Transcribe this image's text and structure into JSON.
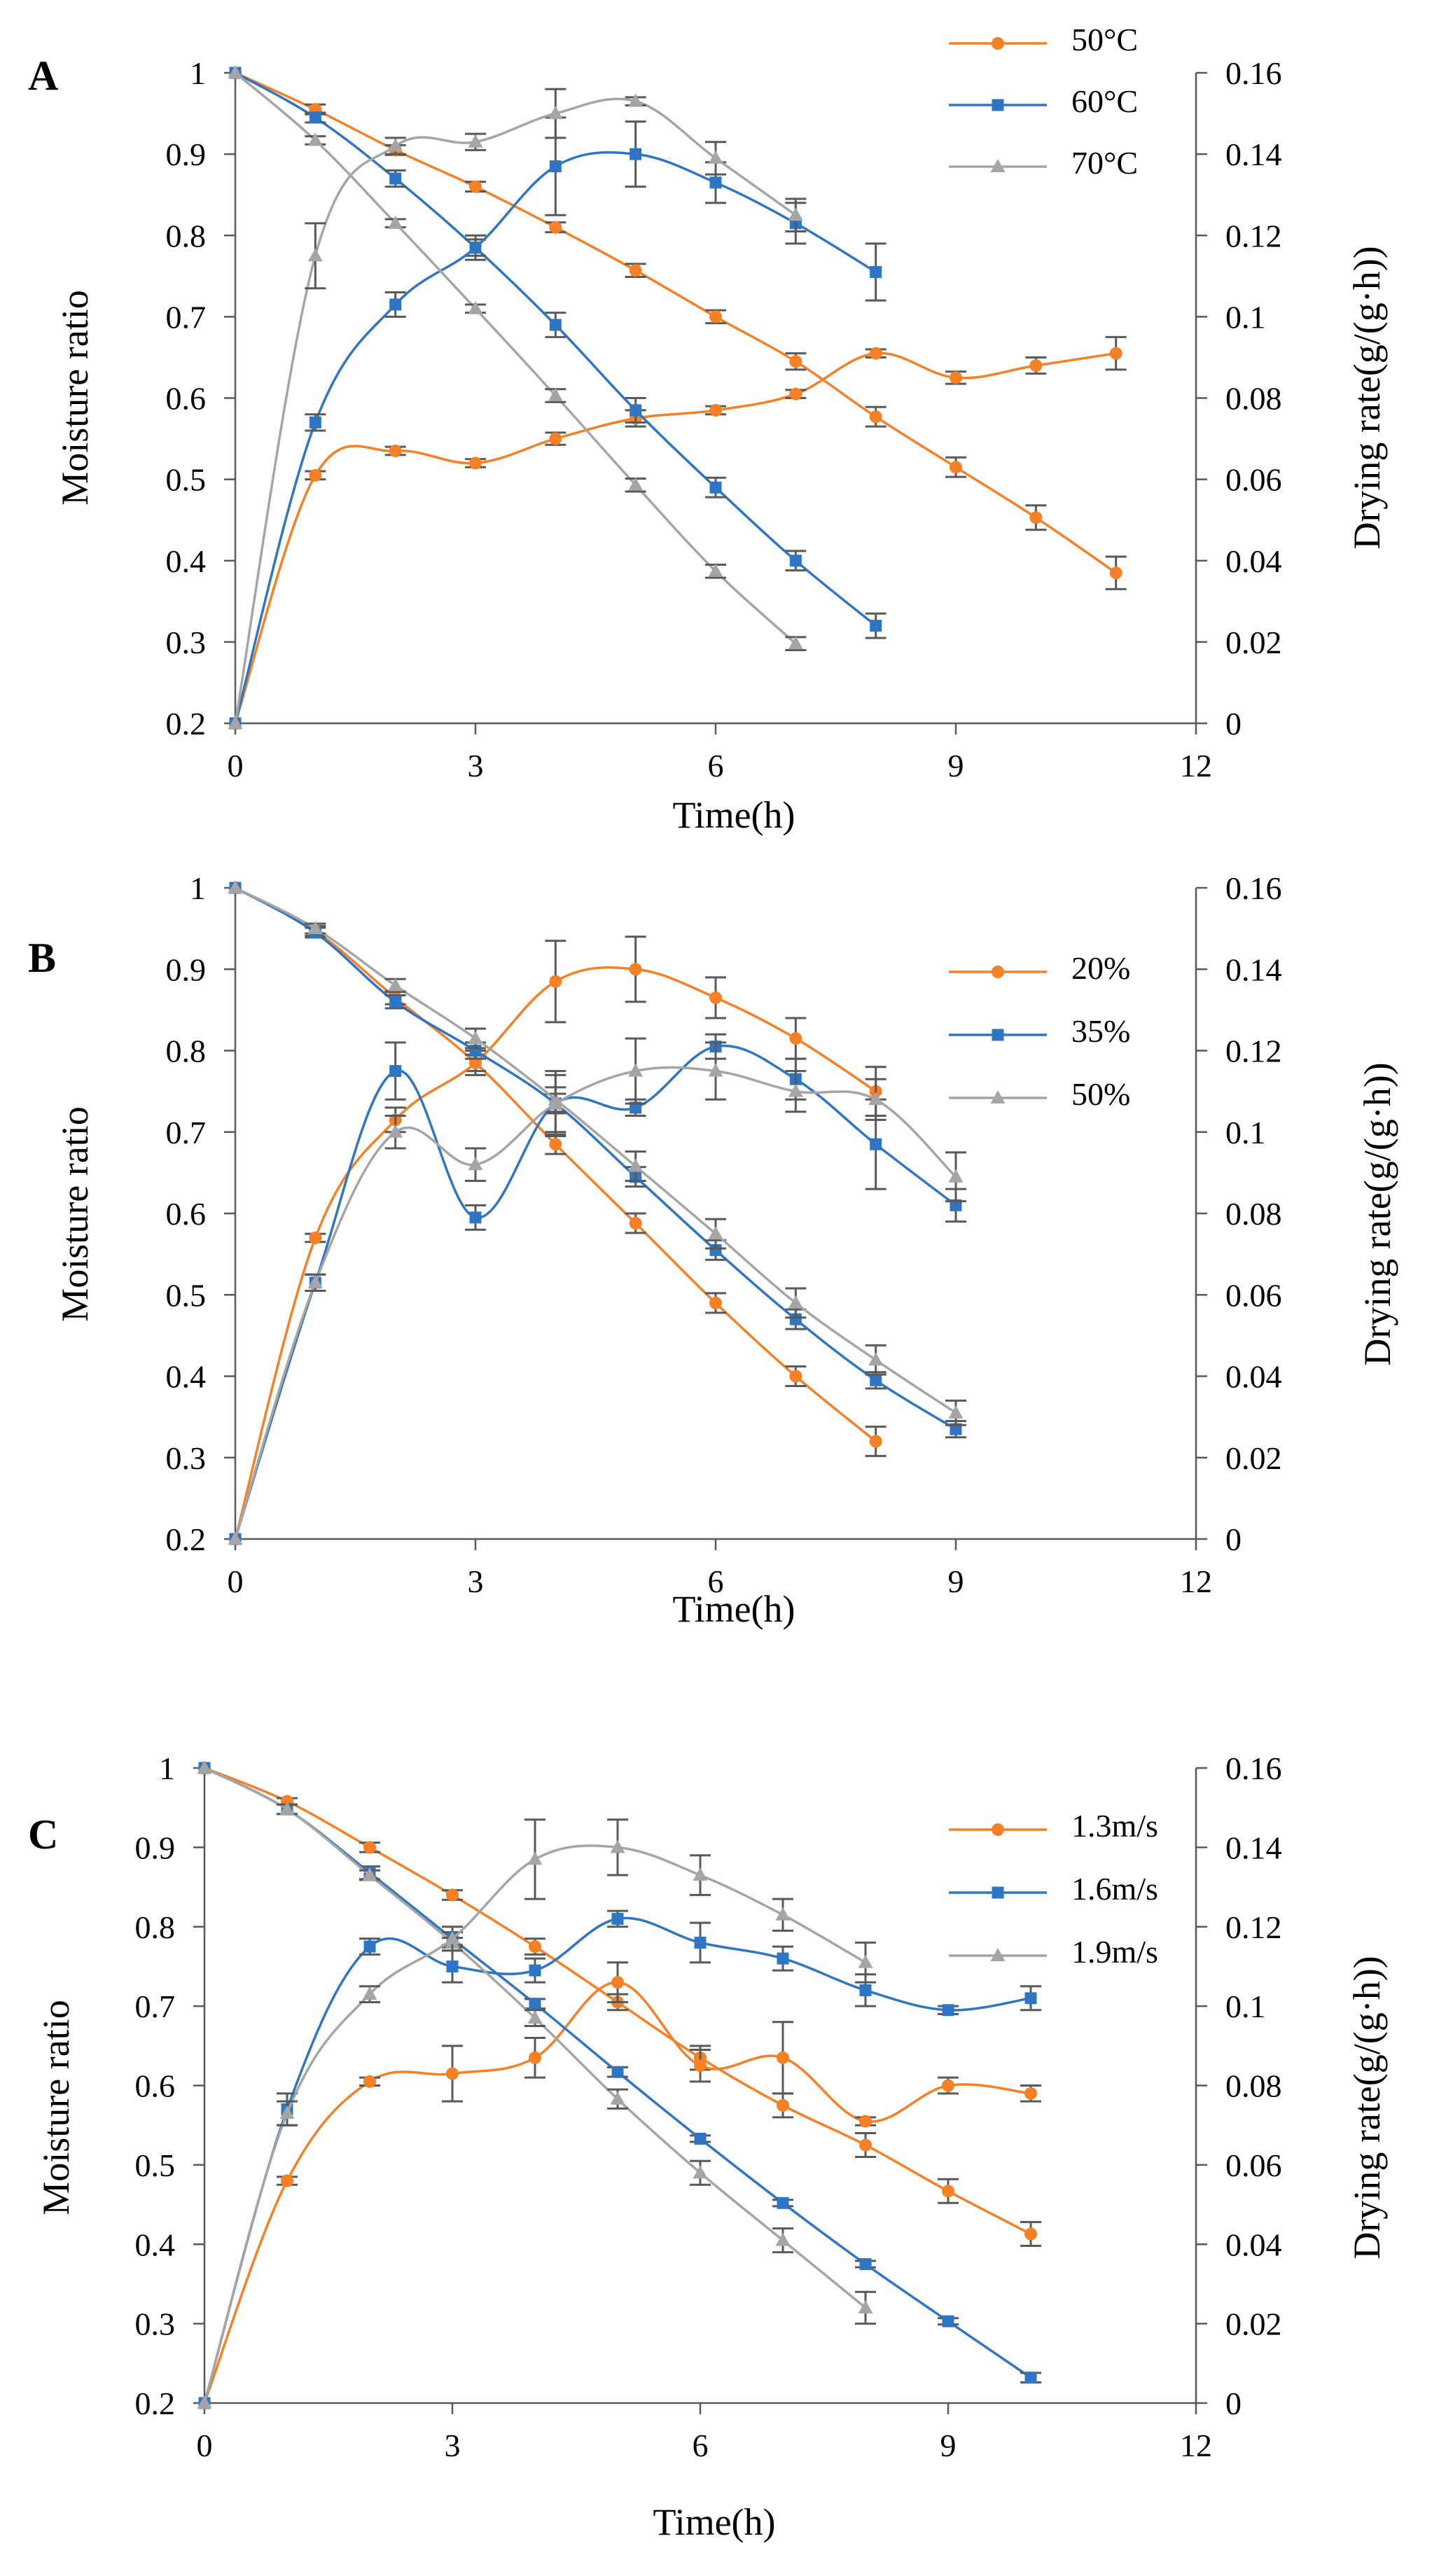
{
  "chart_data": [
    {
      "type": "line",
      "panel_label": "A",
      "xlabel": "Time(h)",
      "ylabel": "Moisture ratio",
      "y2label": "Drying rate(g/(g·h))",
      "xlim": [
        0,
        12
      ],
      "xticks": [
        "0",
        "3",
        "6",
        "9",
        "12"
      ],
      "ylim": [
        0.2,
        1
      ],
      "yticks": [
        "0.2",
        "0.3",
        "0.4",
        "0.5",
        "0.6",
        "0.7",
        "0.8",
        "0.9",
        "1"
      ],
      "y2lim": [
        0,
        0.16
      ],
      "y2ticks": [
        "0",
        "0.02",
        "0.04",
        "0.06",
        "0.08",
        "0.1",
        "0.12",
        "0.14",
        "0.16"
      ],
      "legend_position": "top-right",
      "series": [
        {
          "name": "50°C",
          "color": "#f58025",
          "marker": "circle",
          "moisture_ratio": {
            "x": [
              0,
              1,
              2,
              3,
              4,
              5,
              6,
              7,
              8,
              9,
              10,
              11
            ],
            "y": [
              1,
              0.955,
              0.905,
              0.86,
              0.81,
              0.757,
              0.7,
              0.645,
              0.577,
              0.515,
              0.453,
              0.385
            ],
            "err": [
              0,
              0.006,
              0.006,
              0.006,
              0.006,
              0.008,
              0.008,
              0.01,
              0.012,
              0.012,
              0.015,
              0.02
            ]
          },
          "drying_rate": {
            "x": [
              0,
              1,
              2,
              3,
              4,
              5,
              6,
              7,
              8,
              9,
              10,
              11
            ],
            "y": [
              0,
              0.061,
              0.067,
              0.064,
              0.07,
              0.075,
              0.077,
              0.081,
              0.091,
              0.085,
              0.088,
              0.091
            ],
            "err": [
              0,
              0.001,
              0.001,
              0.001,
              0.0015,
              0.002,
              0.001,
              0.001,
              0.001,
              0.0015,
              0.002,
              0.004
            ]
          }
        },
        {
          "name": "60°C",
          "color": "#2e75c4",
          "marker": "square",
          "moisture_ratio": {
            "x": [
              0,
              1,
              2,
              3,
              4,
              5,
              6,
              7,
              8
            ],
            "y": [
              1,
              0.945,
              0.87,
              0.785,
              0.69,
              0.585,
              0.49,
              0.4,
              0.32
            ],
            "err": [
              0,
              0.006,
              0.01,
              0.01,
              0.015,
              0.015,
              0.012,
              0.012,
              0.015
            ]
          },
          "drying_rate": {
            "x": [
              0,
              1,
              2,
              3,
              4,
              5,
              6,
              7,
              8
            ],
            "y": [
              0,
              0.074,
              0.103,
              0.117,
              0.137,
              0.14,
              0.133,
              0.123,
              0.111
            ],
            "err": [
              0,
              0.002,
              0.003,
              0.003,
              0.012,
              0.008,
              0.005,
              0.005,
              0.007
            ]
          }
        },
        {
          "name": "70°C",
          "color": "#a5a5a5",
          "marker": "triangle",
          "moisture_ratio": {
            "x": [
              0,
              1,
              2,
              3,
              4,
              5,
              6,
              7
            ],
            "y": [
              1,
              0.917,
              0.815,
              0.71,
              0.603,
              0.493,
              0.387,
              0.298
            ],
            "err": [
              0,
              0.005,
              0.005,
              0.005,
              0.008,
              0.008,
              0.008,
              0.008
            ]
          },
          "drying_rate": {
            "x": [
              0,
              1,
              2,
              3,
              4,
              5,
              6,
              7
            ],
            "y": [
              0,
              0.115,
              0.142,
              0.143,
              0.15,
              0.153,
              0.139,
              0.125
            ],
            "err": [
              0,
              0.008,
              0.002,
              0.002,
              0.006,
              0.001,
              0.004,
              0.004
            ]
          }
        }
      ]
    },
    {
      "type": "line",
      "panel_label": "B",
      "xlabel": "Time(h)",
      "ylabel": "Moisture ratio",
      "y2label": "Drying rate(g/(g·h))",
      "xlim": [
        0,
        12
      ],
      "xticks": [
        "0",
        "3",
        "6",
        "9",
        "12"
      ],
      "ylim": [
        0.2,
        1
      ],
      "yticks": [
        "0.2",
        "0.3",
        "0.4",
        "0.5",
        "0.6",
        "0.7",
        "0.8",
        "0.9",
        "1"
      ],
      "y2lim": [
        0,
        0.16
      ],
      "y2ticks": [
        "0",
        "0.02",
        "0.04",
        "0.06",
        "0.08",
        "0.1",
        "0.12",
        "0.14",
        "0.16"
      ],
      "legend_position": "top-right",
      "series": [
        {
          "name": "20%",
          "color": "#f58025",
          "marker": "circle",
          "moisture_ratio": {
            "x": [
              0,
              1,
              2,
              3,
              4,
              5,
              6,
              7,
              8
            ],
            "y": [
              1,
              0.947,
              0.865,
              0.785,
              0.685,
              0.588,
              0.49,
              0.4,
              0.32
            ],
            "err": [
              0,
              0.006,
              0.008,
              0.01,
              0.012,
              0.012,
              0.012,
              0.012,
              0.018
            ]
          },
          "drying_rate": {
            "x": [
              0,
              1,
              2,
              3,
              4,
              5,
              6,
              7,
              8
            ],
            "y": [
              0,
              0.074,
              0.103,
              0.117,
              0.137,
              0.14,
              0.133,
              0.123,
              0.11
            ],
            "err": [
              0,
              0.001,
              0.003,
              0.003,
              0.01,
              0.008,
              0.005,
              0.005,
              0.006
            ]
          }
        },
        {
          "name": "35%",
          "color": "#2e75c4",
          "marker": "square",
          "moisture_ratio": {
            "x": [
              0,
              1,
              2,
              3,
              4,
              5,
              6,
              7,
              8,
              9
            ],
            "y": [
              1,
              0.945,
              0.86,
              0.8,
              0.735,
              0.645,
              0.555,
              0.47,
              0.395,
              0.335
            ],
            "err": [
              0,
              0.006,
              0.008,
              0.01,
              0.012,
              0.012,
              0.012,
              0.012,
              0.01,
              0.01
            ]
          },
          "drying_rate": {
            "x": [
              0,
              1,
              2,
              3,
              4,
              5,
              6,
              7,
              8,
              9
            ],
            "y": [
              0,
              0.063,
              0.115,
              0.079,
              0.107,
              0.106,
              0.121,
              0.113,
              0.097,
              0.082
            ],
            "err": [
              0,
              0.002,
              0.007,
              0.003,
              0.007,
              0.002,
              0.003,
              0.005,
              0.011,
              0.004
            ]
          }
        },
        {
          "name": "50%",
          "color": "#a5a5a5",
          "marker": "triangle",
          "moisture_ratio": {
            "x": [
              0,
              1,
              2,
              3,
              4,
              5,
              6,
              7,
              8,
              9
            ],
            "y": [
              1,
              0.95,
              0.88,
              0.815,
              0.74,
              0.658,
              0.575,
              0.49,
              0.42,
              0.355
            ],
            "err": [
              0,
              0.006,
              0.008,
              0.012,
              0.015,
              0.018,
              0.018,
              0.018,
              0.018,
              0.015
            ]
          },
          "drying_rate": {
            "x": [
              0,
              1,
              2,
              3,
              4,
              5,
              6,
              7,
              8,
              9
            ],
            "y": [
              0,
              0.063,
              0.1,
              0.092,
              0.107,
              0.115,
              0.115,
              0.11,
              0.108,
              0.089
            ],
            "err": [
              0,
              0.002,
              0.004,
              0.004,
              0.008,
              0.008,
              0.007,
              0.005,
              0.005,
              0.006
            ]
          }
        }
      ]
    },
    {
      "type": "line",
      "panel_label": "C",
      "xlabel": "Time(h)",
      "ylabel": "Moisture ratio",
      "y2label": "Drying rate(g/(g·h))",
      "xlim": [
        0,
        12
      ],
      "xticks": [
        "0",
        "3",
        "6",
        "9",
        "12"
      ],
      "ylim": [
        0.2,
        1
      ],
      "yticks": [
        "0.2",
        "0.3",
        "0.4",
        "0.5",
        "0.6",
        "0.7",
        "0.8",
        "0.9",
        "1"
      ],
      "y2lim": [
        0,
        0.16
      ],
      "y2ticks": [
        "0",
        "0.02",
        "0.04",
        "0.06",
        "0.08",
        "0.1",
        "0.12",
        "0.14",
        "0.16"
      ],
      "legend_position": "top-right",
      "series": [
        {
          "name": "1.3m/s",
          "color": "#f58025",
          "marker": "circle",
          "moisture_ratio": {
            "x": [
              0,
              1,
              2,
              3,
              4,
              5,
              6,
              7,
              8,
              9,
              10
            ],
            "y": [
              1,
              0.958,
              0.9,
              0.84,
              0.775,
              0.705,
              0.635,
              0.575,
              0.525,
              0.467,
              0.413
            ],
            "err": [
              0,
              0.004,
              0.006,
              0.006,
              0.01,
              0.01,
              0.015,
              0.015,
              0.015,
              0.015,
              0.015
            ]
          },
          "drying_rate": {
            "x": [
              0,
              1,
              2,
              3,
              4,
              5,
              6,
              7,
              8,
              9,
              10
            ],
            "y": [
              0,
              0.056,
              0.081,
              0.083,
              0.087,
              0.106,
              0.085,
              0.087,
              0.071,
              0.08,
              0.078
            ],
            "err": [
              0,
              0.001,
              0.001,
              0.007,
              0.005,
              0.005,
              0.004,
              0.009,
              0.001,
              0.002,
              0.002
            ]
          }
        },
        {
          "name": "1.6m/s",
          "color": "#2e75c4",
          "marker": "square",
          "moisture_ratio": {
            "x": [
              0,
              1,
              2,
              3,
              4,
              5,
              6,
              7,
              8,
              9,
              10
            ],
            "y": [
              1,
              0.948,
              0.868,
              0.785,
              0.703,
              0.617,
              0.533,
              0.452,
              0.375,
              0.303,
              0.232
            ],
            "err": [
              0,
              0.006,
              0.008,
              0.008,
              0.006,
              0.006,
              0.004,
              0.004,
              0.004,
              0.004,
              0.006
            ]
          },
          "drying_rate": {
            "x": [
              0,
              1,
              2,
              3,
              4,
              5,
              6,
              7,
              8,
              9,
              10
            ],
            "y": [
              0,
              0.074,
              0.115,
              0.11,
              0.109,
              0.122,
              0.116,
              0.112,
              0.104,
              0.099,
              0.102
            ],
            "err": [
              0,
              0.004,
              0.002,
              0.004,
              0.003,
              0.002,
              0.005,
              0.003,
              0.004,
              0.001,
              0.003
            ]
          }
        },
        {
          "name": "1.9m/s",
          "color": "#a5a5a5",
          "marker": "triangle",
          "moisture_ratio": {
            "x": [
              0,
              1,
              2,
              3,
              4,
              5,
              6,
              7,
              8
            ],
            "y": [
              1,
              0.948,
              0.865,
              0.78,
              0.685,
              0.583,
              0.49,
              0.405,
              0.32
            ],
            "err": [
              0,
              0.006,
              0.006,
              0.006,
              0.01,
              0.012,
              0.015,
              0.015,
              0.02
            ]
          },
          "drying_rate": {
            "x": [
              0,
              1,
              2,
              3,
              4,
              5,
              6,
              7,
              8
            ],
            "y": [
              0,
              0.073,
              0.103,
              0.117,
              0.137,
              0.14,
              0.133,
              0.123,
              0.111
            ],
            "err": [
              0,
              0.003,
              0.002,
              0.003,
              0.01,
              0.007,
              0.005,
              0.004,
              0.005
            ]
          }
        }
      ]
    }
  ]
}
